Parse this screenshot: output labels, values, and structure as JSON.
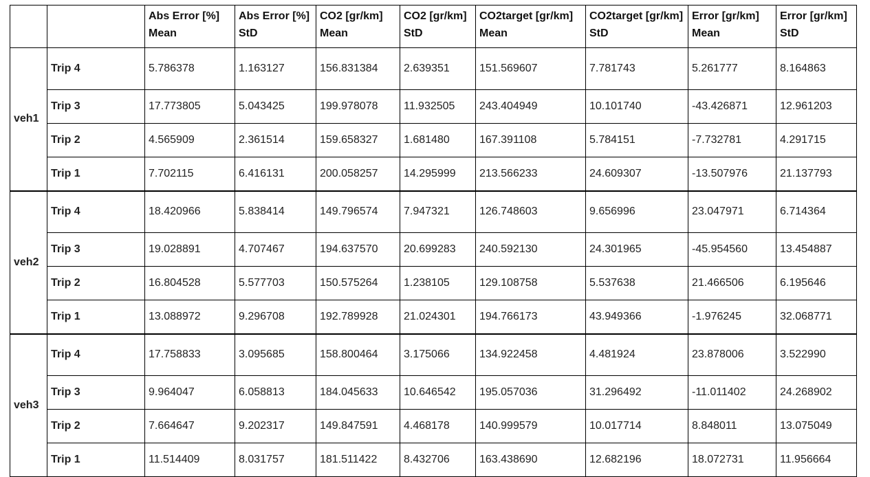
{
  "table": {
    "headers": [
      "",
      "",
      "Abs Error [%] Mean",
      "Abs Error [%] StD",
      "CO2 [gr/km] Mean",
      "CO2 [gr/km]  StD",
      "CO2target [gr/km] Mean",
      "CO2target [gr/km]  StD",
      "Error [gr/km] Mean",
      "Error [gr/km]  StD"
    ],
    "groups": [
      {
        "vehicle": "veh1",
        "rows": [
          {
            "trip": "Trip 4",
            "values": [
              "5.786378",
              "1.163127",
              "156.831384",
              "2.639351",
              "151.569607",
              "7.781743",
              "5.261777",
              "8.164863"
            ]
          },
          {
            "trip": "Trip 3",
            "values": [
              "17.773805",
              "5.043425",
              "199.978078",
              "11.932505",
              "243.404949",
              "10.101740",
              "-43.426871",
              "12.961203"
            ]
          },
          {
            "trip": "Trip 2",
            "values": [
              "4.565909",
              "2.361514",
              "159.658327",
              "1.681480",
              "167.391108",
              "5.784151",
              "-7.732781",
              "4.291715"
            ]
          },
          {
            "trip": "Trip 1",
            "values": [
              "7.702115",
              "6.416131",
              "200.058257",
              "14.295999",
              "213.566233",
              "24.609307",
              "-13.507976",
              "21.137793"
            ]
          }
        ]
      },
      {
        "vehicle": "veh2",
        "rows": [
          {
            "trip": "Trip 4",
            "values": [
              "18.420966",
              "5.838414",
              "149.796574",
              "7.947321",
              "126.748603",
              "9.656996",
              "23.047971",
              "6.714364"
            ]
          },
          {
            "trip": "Trip 3",
            "values": [
              "19.028891",
              "4.707467",
              "194.637570",
              "20.699283",
              "240.592130",
              "24.301965",
              "-45.954560",
              "13.454887"
            ]
          },
          {
            "trip": "Trip 2",
            "values": [
              "16.804528",
              "5.577703",
              "150.575264",
              "1.238105",
              "129.108758",
              "5.537638",
              "21.466506",
              "6.195646"
            ]
          },
          {
            "trip": "Trip 1",
            "values": [
              "13.088972",
              "9.296708",
              "192.789928",
              "21.024301",
              "194.766173",
              "43.949366",
              "-1.976245",
              "32.068771"
            ]
          }
        ]
      },
      {
        "vehicle": "veh3",
        "rows": [
          {
            "trip": "Trip 4",
            "values": [
              "17.758833",
              "3.095685",
              "158.800464",
              "3.175066",
              "134.922458",
              "4.481924",
              "23.878006",
              "3.522990"
            ]
          },
          {
            "trip": "Trip 3",
            "values": [
              "9.964047",
              "6.058813",
              "184.045633",
              "10.646542",
              "195.057036",
              "31.296492",
              "-11.011402",
              "24.268902"
            ]
          },
          {
            "trip": "Trip 2",
            "values": [
              "7.664647",
              "9.202317",
              "149.847591",
              "4.468178",
              "140.999579",
              "10.017714",
              "8.848011",
              "13.075049"
            ]
          },
          {
            "trip": "Trip 1",
            "values": [
              "11.514409",
              "8.031757",
              "181.511422",
              "8.432706",
              "163.438690",
              "12.682196",
              "18.072731",
              "11.956664"
            ]
          }
        ]
      }
    ]
  }
}
